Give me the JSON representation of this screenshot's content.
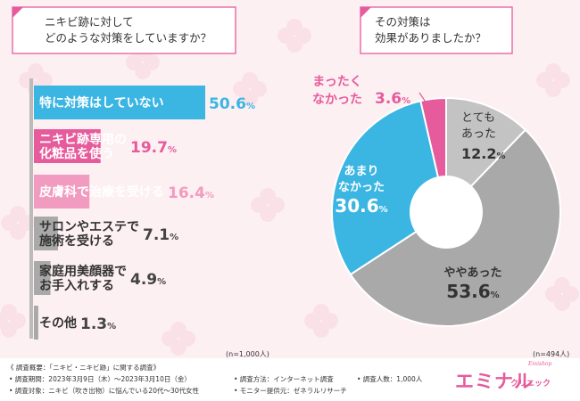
{
  "questions": {
    "left": [
      "ニキビ跡に対して",
      "どのような対策をしていますか？"
    ],
    "right": [
      "その対策は",
      "効果がありましたか？"
    ]
  },
  "n_left": "(n=1,000人)",
  "n_right": "(n=494人)",
  "colors": {
    "accent_blue": "#3bb5e2",
    "accent_pink": "#e65b9b",
    "pink_light": "#f29bc0",
    "gray": "#a9a9a9",
    "gray_light": "#c3c3c3"
  },
  "chart_data": [
    {
      "type": "bar",
      "orientation": "horizontal",
      "categories": [
        "特に対策はしていない",
        "ニキビ跡専用の化粧品を使う",
        "皮膚科で治療を受ける",
        "サロンやエステで施術を受ける",
        "家庭用美顔器でお手入れする",
        "その他"
      ],
      "category_lines": [
        [
          "特に対策はしていない"
        ],
        [
          "ニキビ跡専用の",
          "化粧品を使う"
        ],
        [
          "皮膚科で治療を受ける"
        ],
        [
          "サロンやエステで",
          "施術を受ける"
        ],
        [
          "家庭用美顔器で",
          "お手入れする"
        ],
        [
          "その他"
        ]
      ],
      "values": [
        50.6,
        19.7,
        16.4,
        7.1,
        4.9,
        1.3
      ],
      "value_labels": [
        "50.6",
        "19.7",
        "16.4",
        "7.1",
        "4.9",
        "1.3"
      ],
      "unit": "%",
      "bar_colors": [
        "#3bb5e2",
        "#e65b9b",
        "#f29bc0",
        "#a9a9a9",
        "#a9a9a9",
        "#a9a9a9"
      ]
    },
    {
      "type": "pie",
      "donut": true,
      "categories": [
        "とてもあった",
        "ややあった",
        "あまりなかった",
        "まったくなかった"
      ],
      "label_lines": [
        [
          "とても",
          "あった"
        ],
        [
          "ややあった"
        ],
        [
          "あまり",
          "なかった"
        ],
        [
          "まったく",
          "なかった"
        ]
      ],
      "values": [
        12.2,
        53.6,
        30.6,
        3.6
      ],
      "value_labels": [
        "12.2",
        "53.6",
        "30.6",
        "3.6"
      ],
      "unit": "%",
      "slice_colors": [
        "#c3c3c3",
        "#a9a9a9",
        "#3bb5e2",
        "#e65b9b"
      ]
    }
  ],
  "footer": {
    "survey_title": "《 調査概要：「ニキビ・ニキビ跡」に関する調査》",
    "period": "• 調査期間：2023年3月9日（木）〜2023年3月10日（金）",
    "method": "• 調査方法：インターネット調査",
    "count": "• 調査人数：1,000人",
    "target": "• 調査対象：ニキビ（吹き出物）に悩んでいる20代〜30代女性",
    "provider": "• モニター提供元：ゼネラルリサーチ"
  },
  "logo": {
    "main": "エミナル",
    "sub": "クリニック",
    "tag": "Emishop"
  }
}
